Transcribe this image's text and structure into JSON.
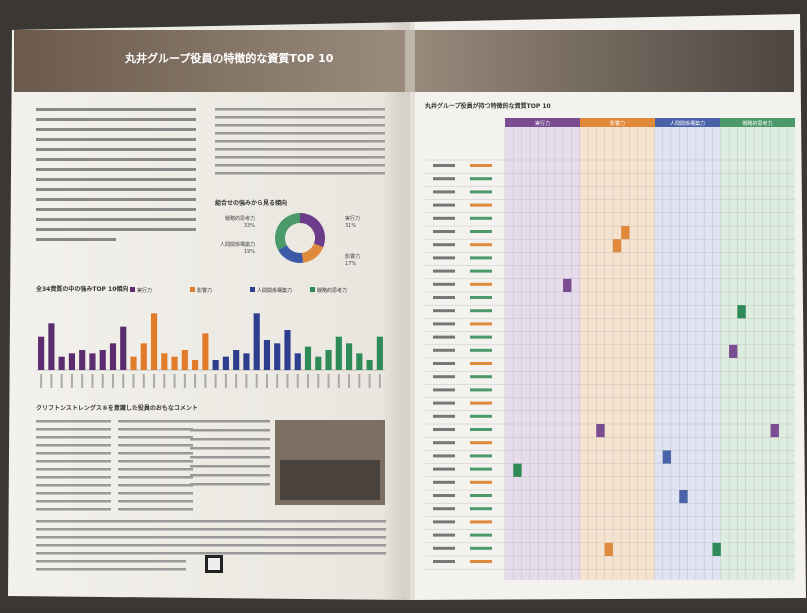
{
  "header": {
    "title": "丸井グループ役員の特徴的な資質TOP 10"
  },
  "left": {
    "section_donut": "組合せの強みから見る傾向",
    "section_comments": "クリフトンストレングス®を意識した役員のおもなコメント"
  },
  "right": {
    "title": "丸井グループ役員が持つ特徴的な資質TOP 10",
    "domains": [
      "実行力",
      "影響力",
      "人間関係構築力",
      "戦略的思考力"
    ]
  },
  "chart_data": [
    {
      "type": "bar",
      "title": "全34資質の中の強みTOP 10傾向",
      "series": [
        {
          "name": "実行力",
          "color": "#5b2c6f",
          "values": [
            10,
            14,
            4,
            5,
            6,
            5,
            6,
            8,
            13
          ]
        },
        {
          "name": "影響力",
          "color": "#e07b2a",
          "values": [
            4,
            8,
            17,
            5,
            4,
            6,
            3,
            11
          ]
        },
        {
          "name": "人間関係構築力",
          "color": "#2d3e8f",
          "values": [
            3,
            4,
            6,
            5,
            17,
            9,
            8,
            12,
            5
          ]
        },
        {
          "name": "戦略的思考力",
          "color": "#2e8b57",
          "values": [
            7,
            4,
            6,
            10,
            8,
            5,
            3,
            10
          ]
        }
      ],
      "ylim": [
        0,
        18
      ]
    },
    {
      "type": "pie",
      "categories": [
        "実行力",
        "影響力",
        "人間関係構築力",
        "戦略的思考力"
      ],
      "values": [
        31,
        17,
        19,
        33
      ],
      "value_labels": [
        "31%",
        "17%",
        "19%",
        "33%"
      ],
      "colors": [
        "#6c3b8a",
        "#e08a3c",
        "#3d5aa8",
        "#4c9a6a"
      ]
    }
  ]
}
